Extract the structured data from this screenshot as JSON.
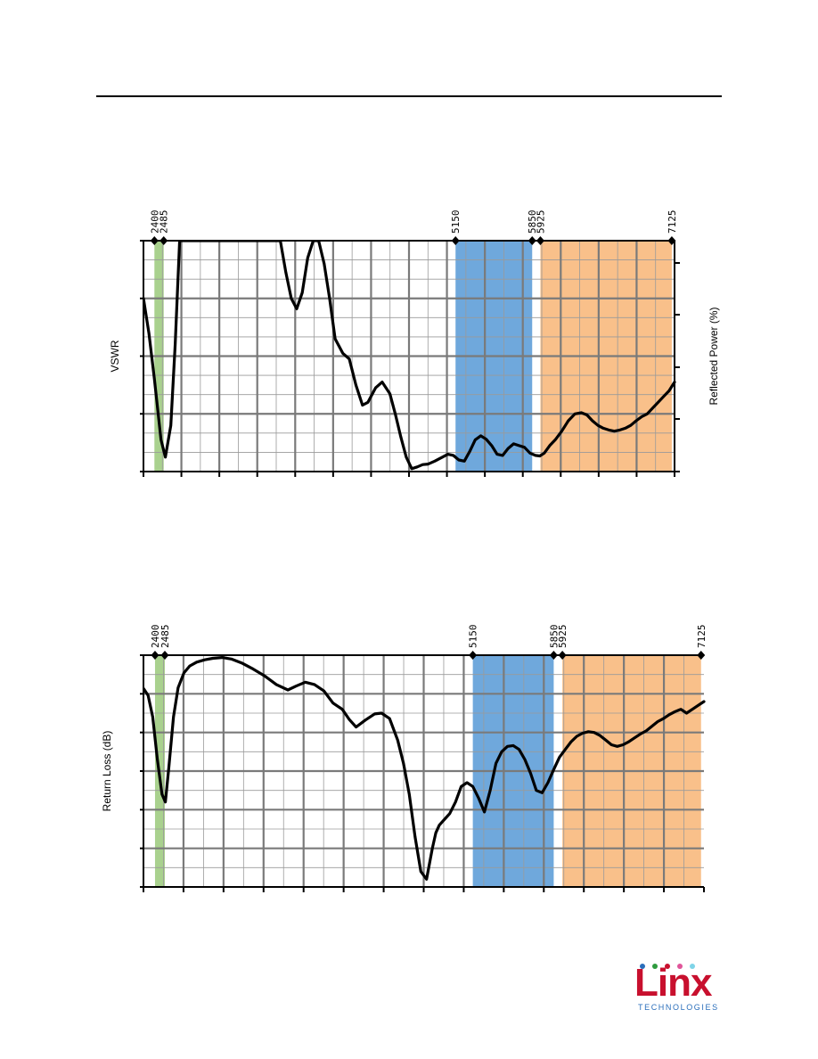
{
  "chart_data": [
    {
      "type": "line",
      "ylabel": "VSWR",
      "y2label": "Reflected Power (%)",
      "xlim": [
        2300,
        7150
      ],
      "ylim": [
        1,
        5
      ],
      "bands": [
        {
          "from": 2400,
          "to": 2485,
          "color": "#a9d18e"
        },
        {
          "from": 5150,
          "to": 5850,
          "color": "#6fa8dc"
        },
        {
          "from": 5925,
          "to": 7125,
          "color": "#f9c08a"
        }
      ],
      "markers": [
        "2400",
        "2485",
        "5150",
        "5850",
        "5925",
        "7125"
      ],
      "marker_values": [
        2400,
        2485,
        5150,
        5850,
        5925,
        7125
      ],
      "series": [
        {
          "x": [
            2300,
            2350,
            2400,
            2460,
            2500,
            2550,
            2590,
            2630,
            3550,
            3600,
            3650,
            3700,
            3750,
            3800,
            3850,
            3900,
            3950,
            4000,
            4050,
            4120,
            4180,
            4240,
            4300,
            4350,
            4420,
            4480,
            4550,
            4600,
            4650,
            4700,
            4750,
            4800,
            4850,
            4900,
            4960,
            5030,
            5080,
            5130,
            5180,
            5230,
            5280,
            5330,
            5380,
            5430,
            5480,
            5530,
            5580,
            5630,
            5680,
            5730,
            5780,
            5830,
            5880,
            5920,
            5960,
            6010,
            6060,
            6120,
            6180,
            6240,
            6300,
            6350,
            6400,
            6450,
            6500,
            6550,
            6600,
            6650,
            6700,
            6750,
            6800,
            6850,
            6900,
            6950,
            7000,
            7050,
            7100,
            7150
          ],
          "y": [
            4.0,
            3.4,
            2.6,
            1.55,
            1.25,
            1.8,
            3.2,
            5.0,
            5.0,
            4.45,
            4.0,
            3.82,
            4.1,
            4.7,
            5.0,
            5.0,
            4.6,
            4.0,
            3.3,
            3.05,
            2.95,
            2.5,
            2.15,
            2.2,
            2.45,
            2.55,
            2.35,
            2.0,
            1.6,
            1.25,
            1.05,
            1.08,
            1.12,
            1.13,
            1.18,
            1.25,
            1.3,
            1.28,
            1.2,
            1.18,
            1.35,
            1.55,
            1.62,
            1.56,
            1.45,
            1.3,
            1.28,
            1.4,
            1.48,
            1.45,
            1.42,
            1.32,
            1.28,
            1.27,
            1.32,
            1.45,
            1.55,
            1.7,
            1.88,
            2.0,
            2.02,
            1.98,
            1.88,
            1.8,
            1.75,
            1.72,
            1.7,
            1.72,
            1.75,
            1.8,
            1.88,
            1.95,
            2.0,
            2.1,
            2.2,
            2.3,
            2.4,
            2.55
          ]
        }
      ]
    },
    {
      "type": "line",
      "ylabel": "Return Loss (dB)",
      "xlim": [
        2300,
        7150
      ],
      "ylim": [
        -30,
        0
      ],
      "bands": [
        {
          "from": 2400,
          "to": 2485,
          "color": "#a9d18e"
        },
        {
          "from": 5150,
          "to": 5850,
          "color": "#6fa8dc"
        },
        {
          "from": 5925,
          "to": 7125,
          "color": "#f9c08a"
        }
      ],
      "markers": [
        "2400",
        "2485",
        "5150",
        "5850",
        "5925",
        "7125"
      ],
      "marker_values": [
        2400,
        2485,
        5150,
        5850,
        5925,
        7125
      ],
      "series": [
        {
          "x": [
            2300,
            2340,
            2380,
            2420,
            2460,
            2490,
            2520,
            2560,
            2600,
            2650,
            2700,
            2760,
            2830,
            2900,
            2980,
            3060,
            3150,
            3250,
            3350,
            3450,
            3550,
            3620,
            3700,
            3780,
            3860,
            3940,
            4020,
            4080,
            4140,
            4220,
            4300,
            4360,
            4430,
            4500,
            4550,
            4600,
            4650,
            4700,
            4750,
            4800,
            4830,
            4860,
            4890,
            4920,
            4950,
            5000,
            5050,
            5100,
            5150,
            5200,
            5250,
            5300,
            5350,
            5400,
            5450,
            5500,
            5550,
            5600,
            5650,
            5700,
            5750,
            5800,
            5850,
            5900,
            5950,
            6000,
            6050,
            6100,
            6150,
            6200,
            6250,
            6300,
            6350,
            6400,
            6450,
            6500,
            6550,
            6600,
            6650,
            6700,
            6750,
            6800,
            6850,
            6900,
            6950,
            7000,
            7050,
            7100,
            7150
          ],
          "y": [
            -4.3,
            -5.2,
            -8.0,
            -13.5,
            -18.0,
            -19.0,
            -14.5,
            -8.0,
            -4.2,
            -2.3,
            -1.4,
            -0.9,
            -0.6,
            -0.4,
            -0.3,
            -0.5,
            -1.0,
            -1.8,
            -2.7,
            -3.8,
            -4.5,
            -4.0,
            -3.5,
            -3.8,
            -4.6,
            -6.2,
            -7.0,
            -8.3,
            -9.3,
            -8.4,
            -7.6,
            -7.5,
            -8.2,
            -11.0,
            -14.0,
            -18.0,
            -23.5,
            -28.0,
            -29.0,
            -25.0,
            -23.0,
            -22.0,
            -21.5,
            -21.0,
            -20.5,
            -19.0,
            -17.0,
            -16.5,
            -17.0,
            -18.5,
            -20.3,
            -17.5,
            -14.0,
            -12.5,
            -11.8,
            -11.7,
            -12.2,
            -13.5,
            -15.3,
            -17.5,
            -17.8,
            -16.5,
            -14.8,
            -13.2,
            -12.2,
            -11.2,
            -10.5,
            -10.1,
            -9.9,
            -10.0,
            -10.4,
            -11.0,
            -11.6,
            -11.8,
            -11.6,
            -11.2,
            -10.7,
            -10.2,
            -9.8,
            -9.2,
            -8.6,
            -8.2,
            -7.7,
            -7.3,
            -7.0,
            -7.5,
            -7.0,
            -6.5,
            -6.0
          ]
        }
      ]
    }
  ],
  "logo": {
    "word": "Linx",
    "sub": "TECHNOLOGIES",
    "dot_colors": [
      "#2a6ebb",
      "#2e9b3e",
      "#c8102e",
      "#e0559a",
      "#7fd4e8"
    ]
  }
}
